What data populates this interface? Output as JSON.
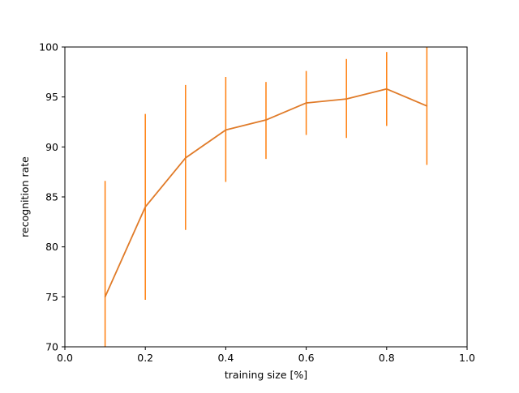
{
  "chart_data": {
    "type": "line",
    "title": "",
    "xlabel": "training size [%]",
    "ylabel": "recognition rate",
    "xlim": [
      0.0,
      1.0
    ],
    "ylim": [
      70,
      100
    ],
    "xticks": [
      0.0,
      0.2,
      0.4,
      0.6,
      0.8,
      1.0
    ],
    "xtick_labels": [
      "0.0",
      "0.2",
      "0.4",
      "0.6",
      "0.8",
      "1.0"
    ],
    "yticks": [
      70,
      75,
      80,
      85,
      90,
      95,
      100
    ],
    "ytick_labels": [
      "70",
      "75",
      "80",
      "85",
      "90",
      "95",
      "100"
    ],
    "grid": false,
    "legend": "none",
    "series": [
      {
        "color": "#ff7f0e",
        "x": [
          0.1,
          0.2,
          0.3,
          0.4,
          0.5,
          0.6,
          0.7,
          0.8,
          0.9
        ],
        "y": [
          75.0,
          84.0,
          88.9,
          91.7,
          92.7,
          94.4,
          94.8,
          95.8,
          94.1
        ],
        "error_low": [
          70.0,
          74.7,
          81.7,
          86.5,
          88.8,
          91.2,
          90.9,
          92.1,
          88.2
        ],
        "error_high": [
          86.6,
          93.3,
          96.2,
          97.0,
          96.5,
          97.6,
          98.8,
          99.5,
          100.0
        ]
      }
    ],
    "line_color": "#e07b29"
  }
}
